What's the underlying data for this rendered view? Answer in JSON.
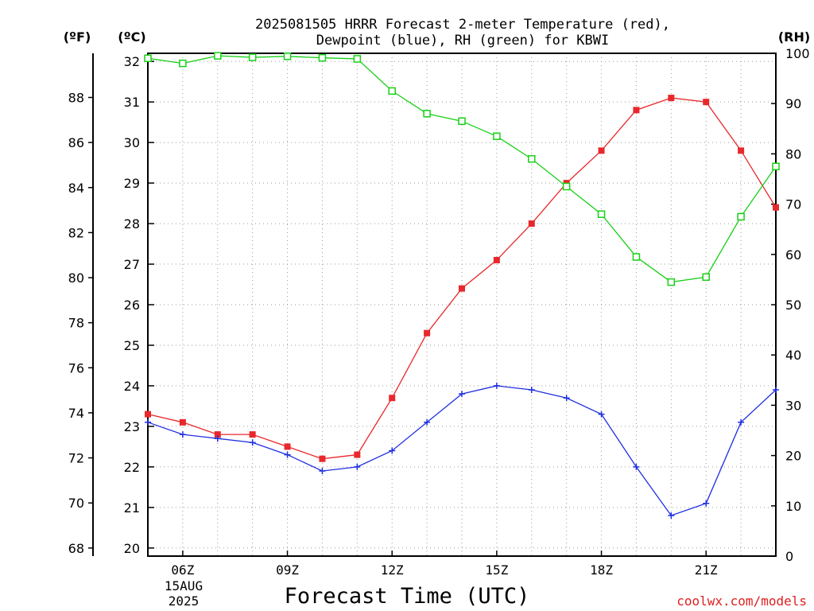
{
  "chart_data": {
    "type": "line",
    "title_line1": "2025081505 HRRR Forecast 2-meter Temperature (red),",
    "title_line2": "Dewpoint (blue), RH (green) for KBWI",
    "xlabel": "Forecast Time (UTC)",
    "watermark": "coolwx.com/models",
    "left_outer_unit": "(ºF)",
    "left_inner_unit": "(ºC)",
    "right_unit": "(RH)",
    "date_label_line1": "15AUG",
    "date_label_line2": "2025",
    "x_range_hours": [
      5,
      23
    ],
    "x_ticks": [
      {
        "hour": 6,
        "label": "06Z"
      },
      {
        "hour": 9,
        "label": "09Z"
      },
      {
        "hour": 12,
        "label": "12Z"
      },
      {
        "hour": 15,
        "label": "15Z"
      },
      {
        "hour": 18,
        "label": "18Z"
      },
      {
        "hour": 21,
        "label": "21Z"
      }
    ],
    "y_celsius_range": [
      19.8,
      32.2
    ],
    "y_celsius_ticks": [
      20,
      21,
      22,
      23,
      24,
      25,
      26,
      27,
      28,
      29,
      30,
      31,
      32
    ],
    "y_fahrenheit_ticks": [
      68,
      70,
      72,
      74,
      76,
      78,
      80,
      82,
      84,
      86,
      88
    ],
    "y_rh_range": [
      0,
      100
    ],
    "y_rh_ticks": [
      0,
      10,
      20,
      30,
      40,
      50,
      60,
      70,
      80,
      90,
      100
    ],
    "grid": true,
    "series": [
      {
        "name": "Temperature",
        "color": "#e8282b",
        "marker": "filled-square",
        "axis": "celsius",
        "x": [
          5,
          6,
          7,
          8,
          9,
          10,
          11,
          12,
          13,
          14,
          15,
          16,
          17,
          18,
          19,
          20,
          21,
          22,
          23
        ],
        "values": [
          23.3,
          23.1,
          22.8,
          22.8,
          22.5,
          22.2,
          22.3,
          23.7,
          25.3,
          26.4,
          27.1,
          28.0,
          29.0,
          29.8,
          30.8,
          31.1,
          31.0,
          29.8,
          28.4
        ]
      },
      {
        "name": "Dewpoint",
        "color": "#2030e0",
        "marker": "plus",
        "axis": "celsius",
        "x": [
          5,
          6,
          7,
          8,
          9,
          10,
          11,
          12,
          13,
          14,
          15,
          16,
          17,
          18,
          19,
          20,
          21,
          22,
          23
        ],
        "values": [
          23.1,
          22.8,
          22.7,
          22.6,
          22.3,
          21.9,
          22.0,
          22.4,
          23.1,
          23.8,
          24.0,
          23.9,
          23.7,
          23.3,
          22.0,
          20.8,
          21.1,
          23.1,
          23.9
        ]
      },
      {
        "name": "RH",
        "color": "#18d018",
        "marker": "open-square",
        "axis": "rh",
        "x": [
          5,
          6,
          7,
          8,
          9,
          10,
          11,
          12,
          13,
          14,
          15,
          16,
          17,
          18,
          19,
          20,
          21,
          22,
          23
        ],
        "values": [
          99,
          98,
          99.5,
          99.2,
          99.4,
          99.1,
          98.9,
          92.5,
          88.0,
          86.5,
          83.5,
          79.0,
          73.5,
          68.0,
          59.5,
          54.5,
          55.5,
          67.5,
          77.5
        ]
      }
    ]
  }
}
